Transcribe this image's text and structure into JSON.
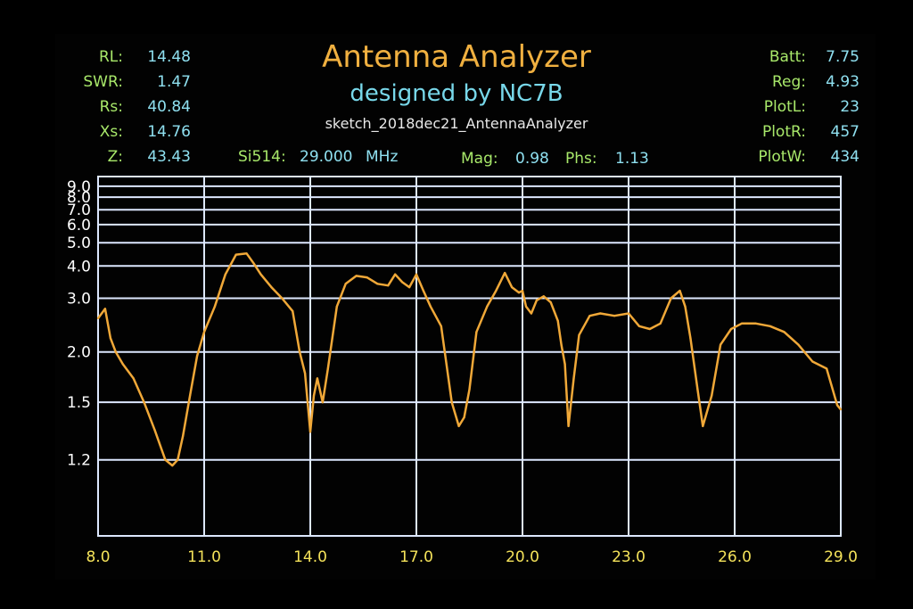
{
  "header": {
    "title": "Antenna Analyzer",
    "subtitle": "designed by NC7B",
    "sketch": "sketch_2018dec21_AntennaAnalyzer"
  },
  "left_readouts": [
    {
      "label": "RL:",
      "value": "14.48"
    },
    {
      "label": "SWR:",
      "value": "1.47"
    },
    {
      "label": "Rs:",
      "value": "40.84"
    },
    {
      "label": "Xs:",
      "value": "14.76"
    },
    {
      "label": "Z:",
      "value": "43.43"
    }
  ],
  "right_readouts": [
    {
      "label": "Batt:",
      "value": "7.75"
    },
    {
      "label": "Reg:",
      "value": "4.93"
    },
    {
      "label": "PlotL:",
      "value": "23"
    },
    {
      "label": "PlotR:",
      "value": "457"
    },
    {
      "label": "PlotW:",
      "value": "434"
    }
  ],
  "status_row": {
    "si_label": "Si514:",
    "si_value": "29.000",
    "si_unit": "MHz",
    "mag_label": "Mag:",
    "mag_value": "0.98",
    "phs_label": "Phs:",
    "phs_value": "1.13"
  },
  "colors": {
    "label": "#a8e86a",
    "value": "#8fe0f0",
    "title": "#f0b040",
    "grid": "#dde8ff",
    "trace": "#f0a838",
    "xtick": "#f4e25a"
  },
  "chart_data": {
    "type": "line",
    "xlabel": "",
    "ylabel": "",
    "xlim": [
      8.0,
      29.0
    ],
    "ylim": [
      1.0,
      10.0
    ],
    "yscale": "log-swr",
    "grid": true,
    "x_ticks": [
      "8.0",
      "11.0",
      "14.0",
      "17.0",
      "20.0",
      "23.0",
      "26.0",
      "29.0"
    ],
    "y_ticks": [
      "9.0",
      "8.0",
      "7.0",
      "6.0",
      "5.0",
      "4.0",
      "3.0",
      "2.0",
      "1.5",
      "1.2"
    ],
    "series": [
      {
        "x": [
          8.0,
          8.2,
          8.35,
          8.5,
          8.7,
          9.0,
          9.3,
          9.6,
          9.9,
          10.1,
          10.25,
          10.4,
          10.6,
          10.8,
          11.0,
          11.3,
          11.6,
          11.9,
          12.2,
          12.4,
          12.6,
          12.9,
          13.2,
          13.5,
          13.7,
          13.85,
          14.0,
          14.1,
          14.2,
          14.35,
          14.5,
          14.75,
          15.0,
          15.3,
          15.6,
          15.9,
          16.2,
          16.4,
          16.6,
          16.8,
          17.0,
          17.2,
          17.4,
          17.7,
          18.0,
          18.2,
          18.35,
          18.5,
          18.7,
          19.0,
          19.25,
          19.5,
          19.7,
          19.9,
          20.0,
          20.1,
          20.25,
          20.4,
          20.6,
          20.8,
          21.0,
          21.1,
          21.2,
          21.3,
          21.45,
          21.6,
          21.9,
          22.2,
          22.6,
          23.0,
          23.3,
          23.6,
          23.9,
          24.2,
          24.45,
          24.6,
          24.75,
          24.95,
          25.1,
          25.35,
          25.6,
          25.9,
          26.2,
          26.6,
          27.0,
          27.4,
          27.8,
          28.2,
          28.6,
          28.9,
          29.0
        ],
        "y": [
          2.55,
          2.75,
          2.2,
          2.0,
          1.85,
          1.7,
          1.5,
          1.33,
          1.2,
          1.18,
          1.2,
          1.3,
          1.55,
          1.95,
          2.3,
          2.8,
          3.7,
          4.45,
          4.5,
          4.1,
          3.7,
          3.3,
          3.0,
          2.7,
          2.0,
          1.75,
          1.32,
          1.55,
          1.7,
          1.5,
          1.8,
          2.8,
          3.4,
          3.65,
          3.6,
          3.4,
          3.35,
          3.7,
          3.45,
          3.3,
          3.7,
          3.2,
          2.8,
          2.4,
          1.5,
          1.35,
          1.4,
          1.6,
          2.3,
          2.8,
          3.2,
          3.75,
          3.3,
          3.15,
          3.2,
          2.8,
          2.65,
          2.95,
          3.05,
          2.9,
          2.5,
          2.1,
          1.85,
          1.35,
          1.7,
          2.25,
          2.6,
          2.65,
          2.6,
          2.65,
          2.4,
          2.35,
          2.45,
          3.0,
          3.2,
          2.8,
          2.2,
          1.6,
          1.35,
          1.55,
          2.1,
          2.35,
          2.45,
          2.45,
          2.4,
          2.3,
          2.1,
          1.88,
          1.8,
          1.48,
          1.45
        ]
      }
    ]
  }
}
